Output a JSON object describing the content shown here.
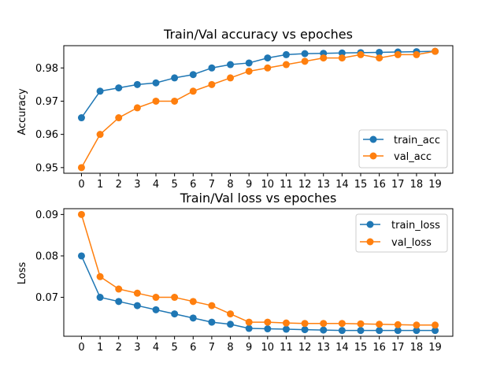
{
  "chart_data": [
    {
      "type": "line",
      "title": "Train/Val accuracy vs epoches",
      "xlabel": "",
      "ylabel": "Accuracy",
      "x": [
        0,
        1,
        2,
        3,
        4,
        5,
        6,
        7,
        8,
        9,
        10,
        11,
        12,
        13,
        14,
        15,
        16,
        17,
        18,
        19
      ],
      "xticks": [
        "0",
        "1",
        "2",
        "3",
        "4",
        "5",
        "6",
        "7",
        "8",
        "9",
        "10",
        "11",
        "12",
        "13",
        "14",
        "15",
        "16",
        "17",
        "18",
        "19"
      ],
      "yticks": [
        0.95,
        0.96,
        0.97,
        0.98
      ],
      "ytick_labels": [
        "0.95",
        "0.96",
        "0.97",
        "0.98"
      ],
      "xlim": [
        -0.95,
        19.95
      ],
      "ylim": [
        0.9483,
        0.9867
      ],
      "grid": false,
      "legend_position": "lower-right",
      "series": [
        {
          "name": "train_acc",
          "color": "#1f77b4",
          "values": [
            0.965,
            0.973,
            0.974,
            0.975,
            0.9755,
            0.977,
            0.978,
            0.98,
            0.981,
            0.9815,
            0.983,
            0.984,
            0.9843,
            0.9844,
            0.9845,
            0.9846,
            0.9847,
            0.9848,
            0.9849,
            0.985
          ]
        },
        {
          "name": "val_acc",
          "color": "#ff7f0e",
          "values": [
            0.95,
            0.96,
            0.965,
            0.968,
            0.97,
            0.97,
            0.973,
            0.975,
            0.977,
            0.979,
            0.98,
            0.981,
            0.982,
            0.983,
            0.983,
            0.984,
            0.983,
            0.984,
            0.984,
            0.985
          ]
        }
      ]
    },
    {
      "type": "line",
      "title": "Train/Val loss vs epoches",
      "xlabel": "",
      "ylabel": "Loss",
      "x": [
        0,
        1,
        2,
        3,
        4,
        5,
        6,
        7,
        8,
        9,
        10,
        11,
        12,
        13,
        14,
        15,
        16,
        17,
        18,
        19
      ],
      "xticks": [
        "0",
        "1",
        "2",
        "3",
        "4",
        "5",
        "6",
        "7",
        "8",
        "9",
        "10",
        "11",
        "12",
        "13",
        "14",
        "15",
        "16",
        "17",
        "18",
        "19"
      ],
      "yticks": [
        0.07,
        0.08,
        0.09
      ],
      "ytick_labels": [
        "0.07",
        "0.08",
        "0.09"
      ],
      "xlim": [
        -0.95,
        19.95
      ],
      "ylim": [
        0.0606,
        0.0914
      ],
      "grid": false,
      "legend_position": "upper-right",
      "series": [
        {
          "name": "train_loss",
          "color": "#1f77b4",
          "values": [
            0.08,
            0.07,
            0.069,
            0.068,
            0.067,
            0.066,
            0.065,
            0.064,
            0.0635,
            0.0625,
            0.0624,
            0.0623,
            0.0622,
            0.0621,
            0.062,
            0.062,
            0.062,
            0.062,
            0.062,
            0.062
          ]
        },
        {
          "name": "val_loss",
          "color": "#ff7f0e",
          "values": [
            0.09,
            0.075,
            0.072,
            0.071,
            0.07,
            0.07,
            0.069,
            0.068,
            0.066,
            0.064,
            0.064,
            0.0638,
            0.0637,
            0.0637,
            0.0637,
            0.0636,
            0.0635,
            0.0634,
            0.0633,
            0.0633
          ]
        }
      ]
    }
  ]
}
